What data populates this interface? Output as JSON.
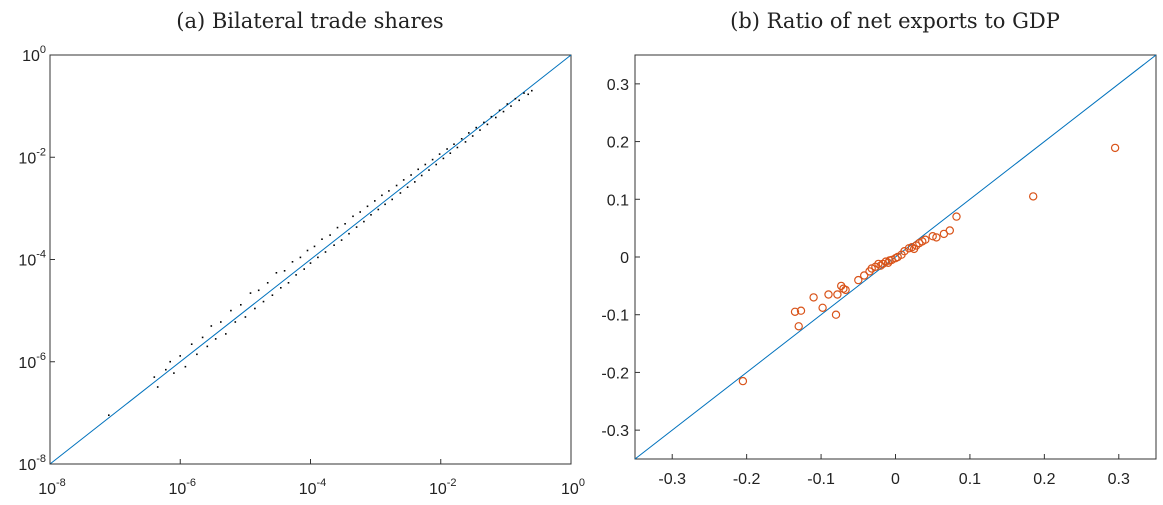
{
  "chart_data": [
    {
      "type": "scatter",
      "title": "(a) Bilateral trade shares",
      "xscale": "log",
      "yscale": "log",
      "xlim": [
        1e-08,
        1
      ],
      "ylim": [
        1e-08,
        1
      ],
      "xticks": [
        {
          "base": "10",
          "exp": "-8"
        },
        {
          "base": "10",
          "exp": "-6"
        },
        {
          "base": "10",
          "exp": "-4"
        },
        {
          "base": "10",
          "exp": "-2"
        },
        {
          "base": "10",
          "exp": "0"
        }
      ],
      "yticks": [
        {
          "base": "10",
          "exp": "-8"
        },
        {
          "base": "10",
          "exp": "-6"
        },
        {
          "base": "10",
          "exp": "-4"
        },
        {
          "base": "10",
          "exp": "-2"
        },
        {
          "base": "10",
          "exp": "0"
        }
      ],
      "reference_line": "45-degree",
      "point_color": "#000000",
      "line_color": "#0072BD",
      "series": [
        {
          "points": [
            [
              8e-08,
              9e-08
            ],
            [
              4e-07,
              5e-07
            ],
            [
              4.5e-07,
              3.2e-07
            ],
            [
              6e-07,
              7e-07
            ],
            [
              7e-07,
              1e-06
            ],
            [
              8e-07,
              6e-07
            ],
            [
              1e-06,
              1.3e-06
            ],
            [
              1.2e-06,
              8e-07
            ],
            [
              1.5e-06,
              2.2e-06
            ],
            [
              1.8e-06,
              1.4e-06
            ],
            [
              2.2e-06,
              3e-06
            ],
            [
              2.6e-06,
              2e-06
            ],
            [
              3e-06,
              5e-06
            ],
            [
              3.5e-06,
              2.8e-06
            ],
            [
              4.2e-06,
              6e-06
            ],
            [
              5e-06,
              3.5e-06
            ],
            [
              6e-06,
              1e-05
            ],
            [
              7e-06,
              6e-06
            ],
            [
              8.5e-06,
              1.3e-05
            ],
            [
              1e-05,
              7.5e-06
            ],
            [
              1.2e-05,
              2.2e-05
            ],
            [
              1.4e-05,
              1.1e-05
            ],
            [
              1.6e-05,
              2.5e-05
            ],
            [
              1.9e-05,
              1.5e-05
            ],
            [
              2.2e-05,
              3.5e-05
            ],
            [
              2.6e-05,
              2e-05
            ],
            [
              3e-05,
              5.5e-05
            ],
            [
              3.5e-05,
              2.8e-05
            ],
            [
              4e-05,
              6e-05
            ],
            [
              4.6e-05,
              3.5e-05
            ],
            [
              5.3e-05,
              9e-05
            ],
            [
              6e-05,
              5e-05
            ],
            [
              7e-05,
              0.00011
            ],
            [
              8e-05,
              6.5e-05
            ],
            [
              9e-05,
              0.00015
            ],
            [
              0.0001,
              8.5e-05
            ],
            [
              0.000115,
              0.00018
            ],
            [
              0.00013,
              0.00011
            ],
            [
              0.00015,
              0.00025
            ],
            [
              0.00017,
              0.00014
            ],
            [
              0.0002,
              0.0003
            ],
            [
              0.00023,
              0.00019
            ],
            [
              0.00026,
              0.00042
            ],
            [
              0.0003,
              0.00024
            ],
            [
              0.00034,
              0.0005
            ],
            [
              0.00039,
              0.00032
            ],
            [
              0.00045,
              0.0007
            ],
            [
              0.00051,
              0.00043
            ],
            [
              0.00058,
              0.00085
            ],
            [
              0.00066,
              0.00055
            ],
            [
              0.00075,
              0.0011
            ],
            [
              0.00085,
              0.00075
            ],
            [
              0.00097,
              0.0014
            ],
            [
              0.0011,
              0.00095
            ],
            [
              0.00125,
              0.0018
            ],
            [
              0.0014,
              0.0012
            ],
            [
              0.0016,
              0.0022
            ],
            [
              0.0018,
              0.0015
            ],
            [
              0.0021,
              0.0028
            ],
            [
              0.0024,
              0.002
            ],
            [
              0.0027,
              0.0036
            ],
            [
              0.0031,
              0.0026
            ],
            [
              0.0035,
              0.0045
            ],
            [
              0.004,
              0.0033
            ],
            [
              0.0045,
              0.0058
            ],
            [
              0.0051,
              0.0044
            ],
            [
              0.0058,
              0.0072
            ],
            [
              0.0066,
              0.0056
            ],
            [
              0.0075,
              0.009
            ],
            [
              0.0085,
              0.0072
            ],
            [
              0.0096,
              0.0115
            ],
            [
              0.011,
              0.0095
            ],
            [
              0.0125,
              0.0145
            ],
            [
              0.014,
              0.012
            ],
            [
              0.016,
              0.018
            ],
            [
              0.018,
              0.0155
            ],
            [
              0.021,
              0.023
            ],
            [
              0.024,
              0.02
            ],
            [
              0.027,
              0.03
            ],
            [
              0.031,
              0.026
            ],
            [
              0.035,
              0.038
            ],
            [
              0.04,
              0.034
            ],
            [
              0.046,
              0.048
            ],
            [
              0.052,
              0.044
            ],
            [
              0.06,
              0.062
            ],
            [
              0.07,
              0.06
            ],
            [
              0.08,
              0.083
            ],
            [
              0.092,
              0.078
            ],
            [
              0.105,
              0.11
            ],
            [
              0.12,
              0.1
            ],
            [
              0.14,
              0.14
            ],
            [
              0.16,
              0.13
            ],
            [
              0.19,
              0.18
            ],
            [
              0.22,
              0.17
            ],
            [
              0.25,
              0.2
            ]
          ]
        }
      ]
    },
    {
      "type": "scatter",
      "title": "(b) Ratio of net exports to GDP",
      "xlim": [
        -0.35,
        0.35
      ],
      "ylim": [
        -0.35,
        0.35
      ],
      "xticks": [
        "-0.3",
        "-0.2",
        "-0.1",
        "0",
        "0.1",
        "0.2",
        "0.3"
      ],
      "yticks": [
        "-0.3",
        "-0.2",
        "-0.1",
        "0",
        "0.1",
        "0.2",
        "0.3"
      ],
      "reference_line": "45-degree",
      "point_color": "#D95319",
      "line_color": "#0072BD",
      "series": [
        {
          "points": [
            [
              -0.205,
              -0.215
            ],
            [
              -0.135,
              -0.095
            ],
            [
              -0.13,
              -0.12
            ],
            [
              -0.127,
              -0.093
            ],
            [
              -0.11,
              -0.07
            ],
            [
              -0.098,
              -0.088
            ],
            [
              -0.09,
              -0.065
            ],
            [
              -0.08,
              -0.1
            ],
            [
              -0.078,
              -0.065
            ],
            [
              -0.073,
              -0.05
            ],
            [
              -0.07,
              -0.055
            ],
            [
              -0.067,
              -0.057
            ],
            [
              -0.05,
              -0.04
            ],
            [
              -0.042,
              -0.032
            ],
            [
              -0.035,
              -0.025
            ],
            [
              -0.032,
              -0.02
            ],
            [
              -0.027,
              -0.017
            ],
            [
              -0.023,
              -0.012
            ],
            [
              -0.02,
              -0.015
            ],
            [
              -0.017,
              -0.012
            ],
            [
              -0.013,
              -0.008
            ],
            [
              -0.01,
              -0.01
            ],
            [
              -0.008,
              -0.006
            ],
            [
              -0.005,
              -0.005
            ],
            [
              0.0,
              -0.002
            ],
            [
              0.003,
              0.0
            ],
            [
              0.008,
              0.004
            ],
            [
              0.012,
              0.01
            ],
            [
              0.018,
              0.015
            ],
            [
              0.022,
              0.017
            ],
            [
              0.025,
              0.014
            ],
            [
              0.028,
              0.02
            ],
            [
              0.032,
              0.024
            ],
            [
              0.036,
              0.027
            ],
            [
              0.04,
              0.03
            ],
            [
              0.05,
              0.036
            ],
            [
              0.055,
              0.034
            ],
            [
              0.065,
              0.04
            ],
            [
              0.073,
              0.046
            ],
            [
              0.082,
              0.07
            ],
            [
              0.185,
              0.105
            ],
            [
              0.295,
              0.189
            ]
          ]
        }
      ]
    }
  ]
}
